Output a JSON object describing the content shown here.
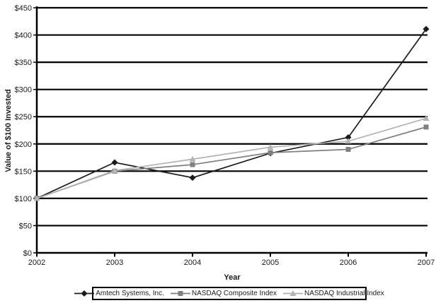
{
  "chart_data": {
    "type": "line",
    "title": "",
    "xlabel": "Year",
    "ylabel": "Value of $100 Invested",
    "x_categories": [
      "2002",
      "2003",
      "2004",
      "2005",
      "2006",
      "2007"
    ],
    "y_tick_labels": [
      "$0",
      "$50",
      "$100",
      "$150",
      "$200",
      "$250",
      "$300",
      "$350",
      "$400",
      "$450"
    ],
    "ylim": [
      0,
      450
    ],
    "y_tick_step": 50,
    "grid": "horizontal",
    "grid_color": "#000000",
    "background_color": "#ffffff",
    "legend_position": "bottom",
    "series": [
      {
        "name": "Amtech Systems, Inc.",
        "marker": "diamond",
        "color": "#1a1a1a",
        "values": [
          100,
          166,
          138,
          183,
          212,
          411
        ]
      },
      {
        "name": "NASDAQ Composite Index",
        "marker": "square",
        "color": "#7f7f7f",
        "values": [
          100,
          150,
          162,
          184,
          190,
          231
        ]
      },
      {
        "name": "NASDAQ Industrial Index",
        "marker": "triangle",
        "color": "#b3b3b3",
        "values": [
          100,
          151,
          172,
          194,
          205,
          247
        ]
      }
    ]
  }
}
